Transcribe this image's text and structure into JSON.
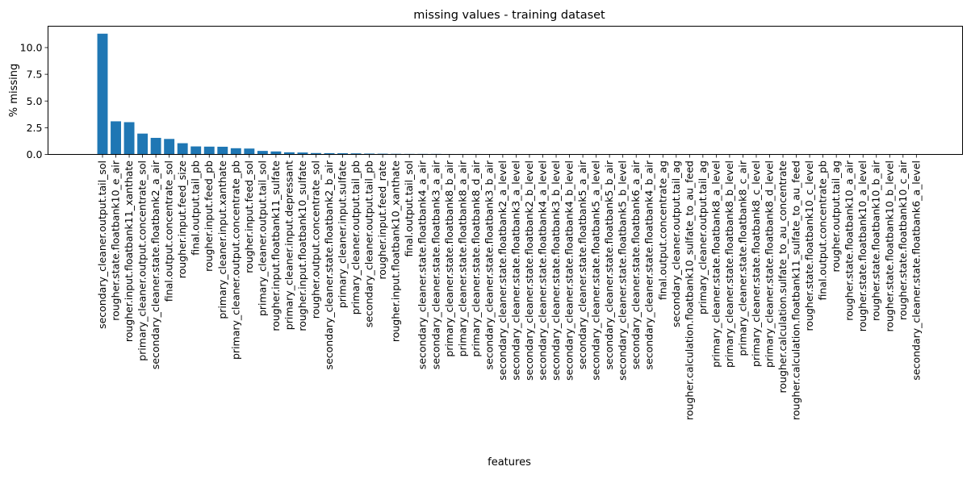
{
  "chart_data": {
    "type": "bar",
    "title": "missing values - training dataset",
    "xlabel": "features",
    "ylabel": "% missing",
    "ylim": [
      0,
      12
    ],
    "yticks": [
      0.0,
      2.5,
      5.0,
      7.5,
      10.0
    ],
    "ytick_labels": [
      "0.0",
      "2.5",
      "5.0",
      "7.5",
      "10.0"
    ],
    "grid": false,
    "bar_color": "#1f77b4",
    "categories": [
      "secondary_cleaner.output.tail_sol",
      "rougher.state.floatbank10_e_air",
      "rougher.input.floatbank11_xanthate",
      "primary_cleaner.output.concentrate_sol",
      "secondary_cleaner.state.floatbank2_a_air",
      "final.output.concentrate_sol",
      "rougher.input.feed_size",
      "final.output.tail_pb",
      "rougher.input.feed_pb",
      "primary_cleaner.input.xanthate",
      "primary_cleaner.output.concentrate_pb",
      "rougher.input.feed_sol",
      "primary_cleaner.output.tail_sol",
      "rougher.input.floatbank11_sulfate",
      "primary_cleaner.input.depressant",
      "rougher.input.floatbank10_sulfate",
      "rougher.output.concentrate_sol",
      "secondary_cleaner.state.floatbank2_b_air",
      "primary_cleaner.input.sulfate",
      "primary_cleaner.output.tail_pb",
      "secondary_cleaner.output.tail_pb",
      "rougher.input.feed_rate",
      "rougher.input.floatbank10_xanthate",
      "final.output.tail_sol",
      "secondary_cleaner.state.floatbank4_a_air",
      "secondary_cleaner.state.floatbank3_a_air",
      "primary_cleaner.state.floatbank8_b_air",
      "primary_cleaner.state.floatbank8_a_air",
      "primary_cleaner.state.floatbank8_d_air",
      "secondary_cleaner.state.floatbank3_b_air",
      "secondary_cleaner.state.floatbank2_a_level",
      "secondary_cleaner.state.floatbank3_a_level",
      "secondary_cleaner.state.floatbank2_b_level",
      "secondary_cleaner.state.floatbank4_a_level",
      "secondary_cleaner.state.floatbank3_b_level",
      "secondary_cleaner.state.floatbank4_b_level",
      "secondary_cleaner.state.floatbank5_a_air",
      "secondary_cleaner.state.floatbank5_a_level",
      "secondary_cleaner.state.floatbank5_b_air",
      "secondary_cleaner.state.floatbank5_b_level",
      "secondary_cleaner.state.floatbank6_a_air",
      "secondary_cleaner.state.floatbank4_b_air",
      "final.output.concentrate_ag",
      "secondary_cleaner.output.tail_ag",
      "rougher.calculation.floatbank10_sulfate_to_au_feed",
      "primary_cleaner.output.tail_ag",
      "primary_cleaner.state.floatbank8_a_level",
      "primary_cleaner.state.floatbank8_b_level",
      "primary_cleaner.state.floatbank8_c_air",
      "primary_cleaner.state.floatbank8_c_level",
      "primary_cleaner.state.floatbank8_d_level",
      "rougher.calculation.sulfate_to_au_concentrate",
      "rougher.calculation.floatbank11_sulfate_to_au_feed",
      "rougher.state.floatbank10_c_level",
      "final.output.concentrate_pb",
      "rougher.output.tail_ag",
      "rougher.state.floatbank10_a_air",
      "rougher.state.floatbank10_a_level",
      "rougher.state.floatbank10_b_air",
      "rougher.state.floatbank10_b_level",
      "rougher.state.floatbank10_c_air",
      "secondary_cleaner.state.floatbank6_a_level"
    ],
    "values": [
      11.3,
      3.1,
      3.02,
      1.95,
      1.55,
      1.45,
      1.05,
      0.75,
      0.73,
      0.72,
      0.58,
      0.55,
      0.33,
      0.28,
      0.2,
      0.18,
      0.13,
      0.12,
      0.11,
      0.1,
      0.08,
      0.07,
      0.06,
      0.05,
      0.05,
      0.05,
      0.04,
      0.04,
      0.04,
      0.03,
      0.02,
      0.02,
      0.02,
      0.02,
      0.02,
      0.02,
      0.02,
      0.02,
      0.02,
      0.02,
      0.02,
      0.02,
      0.01,
      0.01,
      0.01,
      0.01,
      0.01,
      0.01,
      0.01,
      0.01,
      0.01,
      0.01,
      0.01,
      0.01,
      0.01,
      0.01,
      0.01,
      0.01,
      0.01,
      0.01,
      0.01,
      0.01
    ]
  }
}
